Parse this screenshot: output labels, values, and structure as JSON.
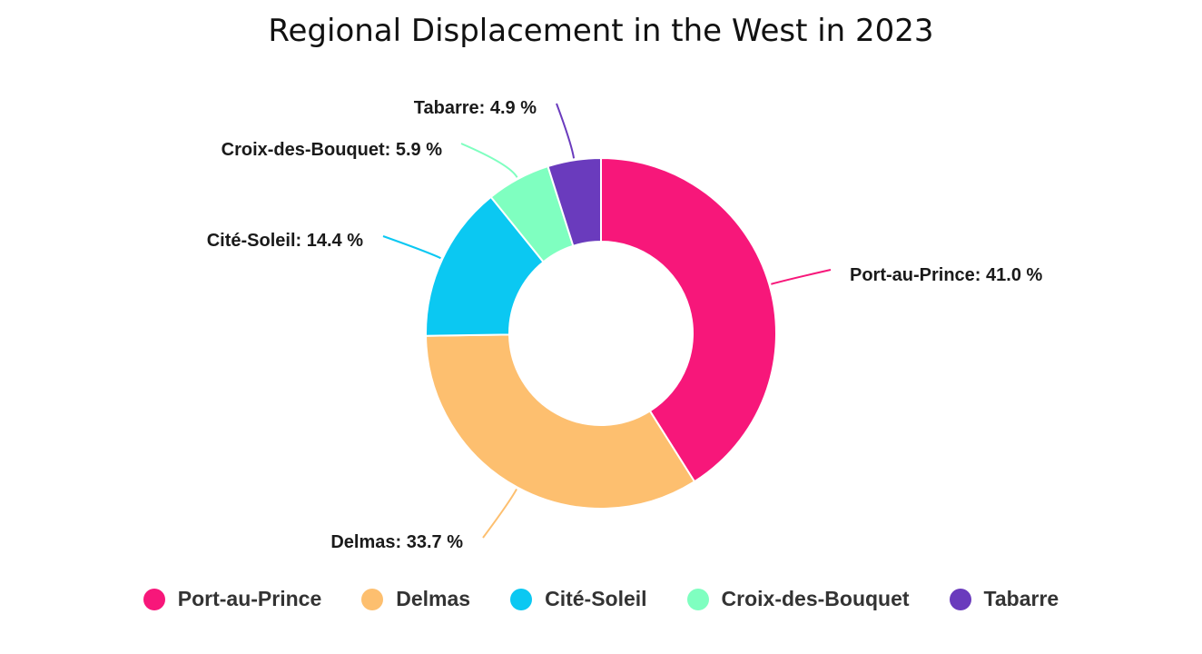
{
  "chart_data": {
    "type": "pie",
    "title": "Regional Displacement in the West in 2023",
    "donut": true,
    "legend_position": "bottom",
    "series": [
      {
        "name": "Port-au-Prince",
        "value": 41.0,
        "label": "Port-au-Prince: 41.0 %",
        "color": "#f7177a"
      },
      {
        "name": "Delmas",
        "value": 33.7,
        "label": "Delmas: 33.7 %",
        "color": "#fdbf6f"
      },
      {
        "name": "Cité-Soleil",
        "value": 14.4,
        "label": "Cité-Soleil: 14.4 %",
        "color": "#0bc8f2"
      },
      {
        "name": "Croix-des-Bouquet",
        "value": 5.9,
        "label": "Croix-des-Bouquet: 5.9 %",
        "color": "#7fffc0"
      },
      {
        "name": "Tabarre",
        "value": 4.9,
        "label": "Tabarre: 4.9 %",
        "color": "#6a3bbd"
      }
    ]
  }
}
